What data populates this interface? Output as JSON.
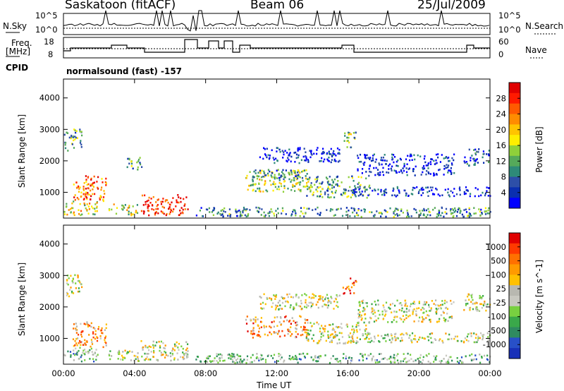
{
  "header": {
    "station": "Saskatoon  (fitACF)",
    "beam": "Beam 06",
    "date": "25/Jul/2009"
  },
  "strip1": {
    "left_label": "N.Sky",
    "right_label": "N.Search",
    "left_ticks": [
      "10^5",
      "10^0"
    ],
    "right_ticks": [
      "10^5",
      "10^0"
    ]
  },
  "strip2": {
    "left_label_1": "Freq.",
    "left_label_2": "[MHz]",
    "right_label": "Nave",
    "left_ticks": [
      "18",
      "8"
    ],
    "right_ticks": [
      "60",
      "0"
    ]
  },
  "cpid": {
    "label": "CPID",
    "value": "normalsound (fast) -157"
  },
  "colors": {
    "power": [
      "#0000ff",
      "#0a2fb0",
      "#2d4fa8",
      "#2e8a78",
      "#55a95a",
      "#8fd03a",
      "#ffee00",
      "#ffc400",
      "#ff8c00",
      "#ff5a00",
      "#ff1a00",
      "#e00000"
    ],
    "velocity": [
      "#1830b8",
      "#2850c8",
      "#2f8a60",
      "#3aa84a",
      "#78d040",
      "#c8c8c0",
      "#b8b8b0",
      "#ffc000",
      "#ff9a00",
      "#ff7000",
      "#ff3a00",
      "#e00000"
    ]
  },
  "chart_data": [
    {
      "type": "heatmap",
      "name": "power-panel",
      "ylabel": "Slant Range [km]",
      "xlabel": "Time UT",
      "x_ticks": [
        "00:00",
        "04:00",
        "08:00",
        "12:00",
        "16:00",
        "20:00",
        "00:00"
      ],
      "y_ticks": [
        "1000",
        "2000",
        "3000",
        "4000"
      ],
      "ylim": [
        180,
        4600
      ],
      "colorbar_label": "Power [dB]",
      "colorbar_ticks": [
        "4",
        "8",
        "12",
        "16",
        "20",
        "24",
        "28"
      ],
      "regions": [
        {
          "t0": 0.0,
          "t1": 1.9,
          "r0": 250,
          "r1": 700,
          "level": 0.55
        },
        {
          "t0": 0.5,
          "t1": 2.4,
          "r0": 700,
          "r1": 1500,
          "level": 0.75
        },
        {
          "t0": 0.0,
          "t1": 1.0,
          "r0": 2300,
          "r1": 3000,
          "level": 0.35
        },
        {
          "t0": 2.5,
          "t1": 4.2,
          "r0": 250,
          "r1": 600,
          "level": 0.5
        },
        {
          "t0": 3.5,
          "t1": 4.4,
          "r0": 1700,
          "r1": 2100,
          "level": 0.35
        },
        {
          "t0": 4.3,
          "t1": 7.0,
          "r0": 250,
          "r1": 900,
          "level": 0.9
        },
        {
          "t0": 7.4,
          "t1": 24.0,
          "r0": 200,
          "r1": 500,
          "level": 0.3
        },
        {
          "t0": 10.2,
          "t1": 13.8,
          "r0": 1000,
          "r1": 1700,
          "level": 0.45
        },
        {
          "t0": 10.6,
          "t1": 13.6,
          "r0": 1400,
          "r1": 1700,
          "level": 0.25
        },
        {
          "t0": 13.6,
          "t1": 17.2,
          "r0": 800,
          "r1": 1500,
          "level": 0.35
        },
        {
          "t0": 11.0,
          "t1": 15.5,
          "r0": 1900,
          "r1": 2400,
          "level": 0.1
        },
        {
          "t0": 15.7,
          "t1": 16.5,
          "r0": 2400,
          "r1": 2900,
          "level": 0.4
        },
        {
          "t0": 16.0,
          "t1": 24.0,
          "r0": 850,
          "r1": 1150,
          "level": 0.1
        },
        {
          "t0": 16.5,
          "t1": 22.0,
          "r0": 1500,
          "r1": 2200,
          "level": 0.08
        },
        {
          "t0": 22.5,
          "t1": 24.0,
          "r0": 1800,
          "r1": 2400,
          "level": 0.2
        }
      ]
    },
    {
      "type": "heatmap",
      "name": "velocity-panel",
      "ylabel": "Slant Range [km]",
      "xlabel": "Time UT",
      "x_ticks": [
        "00:00",
        "04:00",
        "08:00",
        "12:00",
        "16:00",
        "20:00",
        "00:00"
      ],
      "y_ticks": [
        "1000",
        "2000",
        "3000",
        "4000"
      ],
      "ylim": [
        180,
        4600
      ],
      "colorbar_label": "Velocity  [m s^-1]",
      "colorbar_ticks": [
        "1000",
        "500",
        "100",
        "25",
        "-25",
        "-100",
        "-500",
        "-1000"
      ],
      "regions": [
        {
          "t0": 0.0,
          "t1": 1.9,
          "r0": 250,
          "r1": 700,
          "level": 0.35
        },
        {
          "t0": 0.5,
          "t1": 2.4,
          "r0": 700,
          "r1": 1500,
          "level": 0.7
        },
        {
          "t0": 0.0,
          "t1": 1.0,
          "r0": 2300,
          "r1": 3000,
          "level": 0.5
        },
        {
          "t0": 2.5,
          "t1": 4.2,
          "r0": 250,
          "r1": 600,
          "level": 0.5
        },
        {
          "t0": 4.3,
          "t1": 7.0,
          "r0": 250,
          "r1": 900,
          "level": 0.5
        },
        {
          "t0": 7.4,
          "t1": 24.0,
          "r0": 200,
          "r1": 500,
          "level": 0.35
        },
        {
          "t0": 10.2,
          "t1": 13.8,
          "r0": 1000,
          "r1": 1700,
          "level": 0.72
        },
        {
          "t0": 13.6,
          "t1": 17.2,
          "r0": 800,
          "r1": 1500,
          "level": 0.5
        },
        {
          "t0": 11.0,
          "t1": 15.5,
          "r0": 1900,
          "r1": 2400,
          "level": 0.5
        },
        {
          "t0": 15.7,
          "t1": 16.5,
          "r0": 2400,
          "r1": 2900,
          "level": 0.85
        },
        {
          "t0": 16.0,
          "t1": 24.0,
          "r0": 850,
          "r1": 1150,
          "level": 0.5
        },
        {
          "t0": 16.5,
          "t1": 22.0,
          "r0": 1500,
          "r1": 2200,
          "level": 0.5
        },
        {
          "t0": 22.5,
          "t1": 24.0,
          "r0": 1800,
          "r1": 2400,
          "level": 0.5
        }
      ]
    }
  ]
}
